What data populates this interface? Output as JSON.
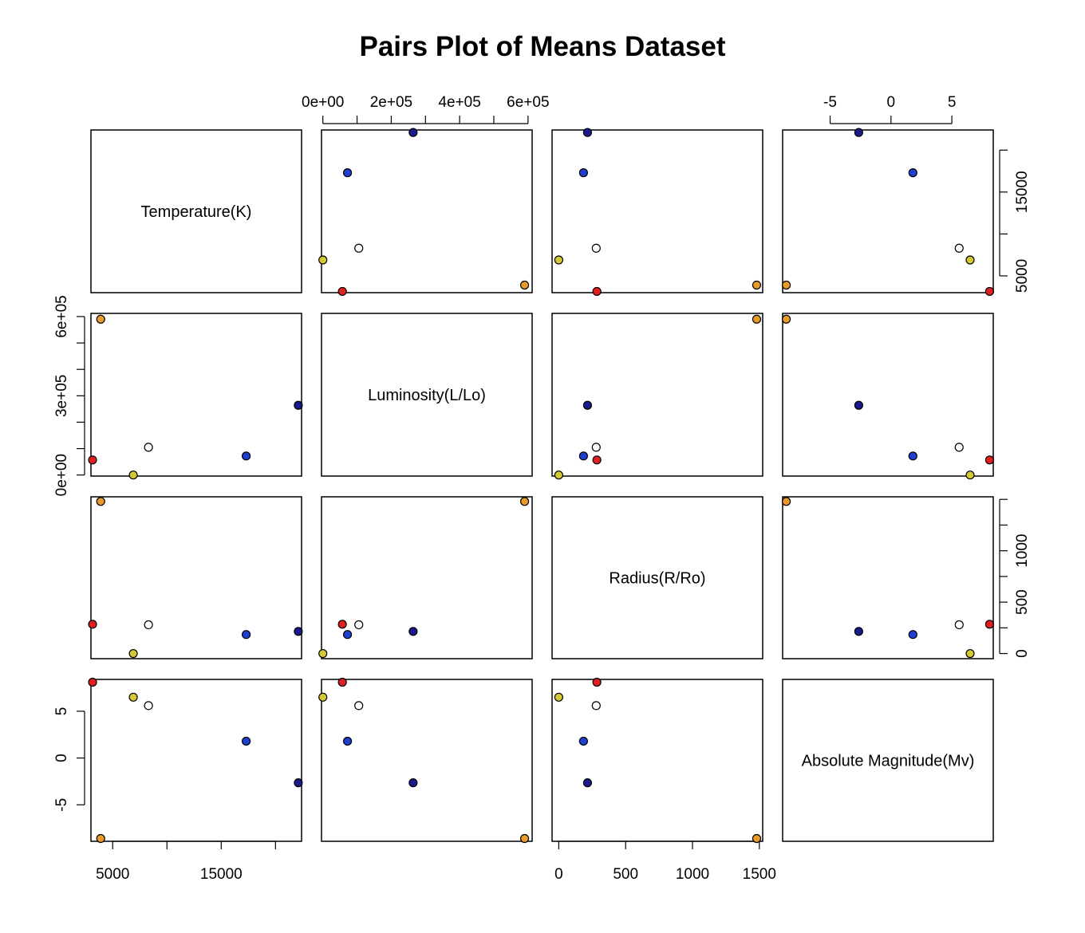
{
  "chart_data": {
    "type": "scatter",
    "title": "Pairs Plot of Means Dataset",
    "variables": [
      "Temperature(K)",
      "Luminosity(L/Lo)",
      "Radius(R/Ro)",
      "Absolute Magnitude(Mv)"
    ],
    "points": [
      {
        "color": "#1a1a8c",
        "values": [
          22100,
          264000,
          215,
          -2.65
        ]
      },
      {
        "color": "#1f3fcf",
        "values": [
          17300,
          72000,
          185,
          1.8
        ]
      },
      {
        "color": "#ffffff",
        "values": [
          8300,
          105000,
          280,
          5.6
        ]
      },
      {
        "color": "#d4c834",
        "values": [
          6900,
          0,
          0,
          6.5
        ]
      },
      {
        "color": "#e02020",
        "values": [
          3150,
          57000,
          285,
          8.1
        ]
      },
      {
        "color": "#e89a2a",
        "values": [
          3900,
          590000,
          1480,
          -8.6
        ]
      }
    ],
    "axes": {
      "temperature": {
        "range": [
          3000,
          22400
        ],
        "ticks": [
          5000,
          10000,
          15000,
          20000
        ],
        "tick_labels": [
          "5000",
          "",
          "15000",
          ""
        ]
      },
      "luminosity": {
        "range": [
          -4000,
          612000
        ],
        "top_ticks": [
          0,
          100000,
          200000,
          300000,
          400000,
          500000,
          600000
        ],
        "top_labels": [
          "0e+00",
          "",
          "2e+05",
          "",
          "4e+05",
          "",
          "6e+05"
        ],
        "left_ticks": [
          0,
          100000,
          200000,
          300000,
          400000,
          500000,
          600000
        ],
        "left_labels": [
          "0e+00",
          "",
          "",
          "3e+05",
          "",
          "",
          "6e+05"
        ]
      },
      "radius": {
        "range": [
          -50,
          1525
        ],
        "bottom_ticks": [
          0,
          500,
          1000,
          1500
        ],
        "bottom_labels": [
          "0",
          "500",
          "1000",
          "1500"
        ],
        "right_ticks": [
          0,
          250,
          500,
          750,
          1000,
          1250,
          1500
        ],
        "right_labels": [
          "0",
          "",
          "500",
          "",
          "1000",
          "",
          ""
        ]
      },
      "magnitude": {
        "range": [
          -8.9,
          8.4
        ],
        "top_ticks": [
          -5,
          0,
          5
        ],
        "top_labels": [
          "-5",
          "0",
          "5"
        ],
        "left_ticks": [
          -5,
          0,
          5
        ],
        "left_labels": [
          "-5",
          "0",
          "5"
        ]
      }
    },
    "temperature_right_ticks": [
      5000,
      10000,
      15000,
      20000
    ],
    "temperature_right_labels": [
      "5000",
      "",
      "15000",
      ""
    ]
  }
}
